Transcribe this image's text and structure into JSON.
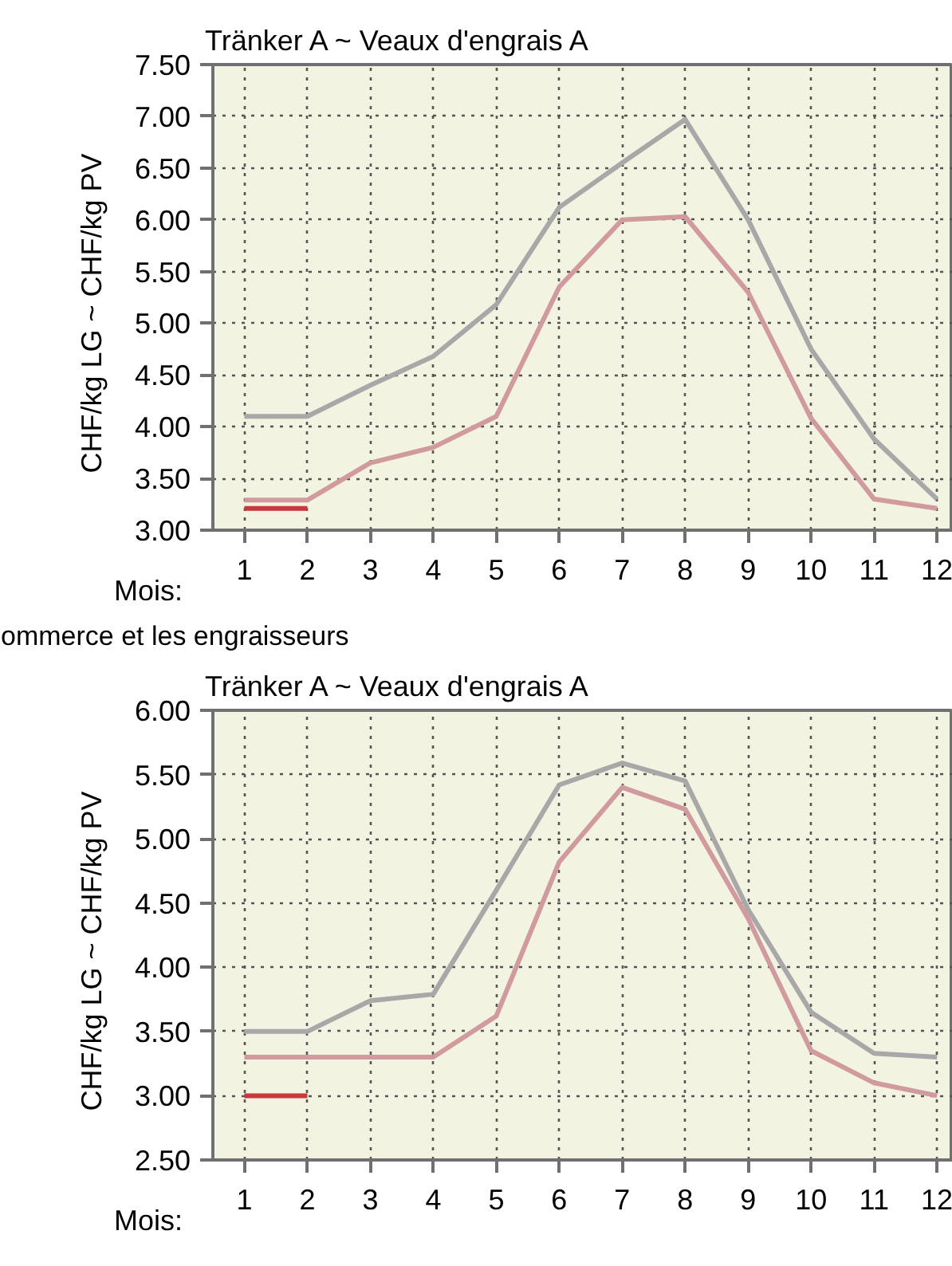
{
  "chart_data": [
    {
      "type": "line",
      "title": "Tränker A   ~   Veaux d'engrais A",
      "xlabel": "Mois:",
      "ylabel": "CHF/kg LG   ~   CHF/kg PV",
      "x": [
        1,
        2,
        3,
        4,
        5,
        6,
        7,
        8,
        9,
        10,
        11,
        12
      ],
      "xlim": [
        0.5,
        12.25
      ],
      "xticks": [
        1,
        2,
        3,
        4,
        5,
        6,
        7,
        8,
        9,
        10,
        11,
        12
      ],
      "ylim": [
        3.0,
        7.5
      ],
      "yticks": [
        {
          "value": 3.0,
          "label": "3.00"
        },
        {
          "value": 3.5,
          "label": "3.50"
        },
        {
          "value": 4.0,
          "label": "4.00"
        },
        {
          "value": 4.5,
          "label": "4.50"
        },
        {
          "value": 5.0,
          "label": "5.00"
        },
        {
          "value": 5.5,
          "label": "5.50"
        },
        {
          "value": 6.0,
          "label": "6.00"
        },
        {
          "value": 6.5,
          "label": "6.50"
        },
        {
          "value": 7.0,
          "label": "7.00"
        },
        {
          "value": 7.5,
          "label": "7.50"
        }
      ],
      "grid": true,
      "series": [
        {
          "color": "#a8a8a8",
          "values": [
            4.1,
            4.1,
            4.4,
            4.68,
            5.18,
            6.12,
            6.55,
            6.97,
            6.0,
            4.75,
            3.88,
            3.3
          ]
        },
        {
          "color": "#d09a9e",
          "values": [
            3.29,
            3.29,
            3.65,
            3.8,
            4.1,
            5.35,
            6.0,
            6.03,
            5.3,
            4.08,
            3.3,
            3.21
          ]
        },
        {
          "color": "#c8383d",
          "values": [
            3.21,
            3.21,
            null,
            null,
            null,
            null,
            null,
            null,
            null,
            null,
            null,
            null
          ]
        }
      ]
    },
    {
      "type": "line",
      "title": "Tränker A   ~   Veaux d'engrais A",
      "annotations": [
        "ommerce et les engraisseurs"
      ],
      "xlabel": "Mois:",
      "ylabel": "CHF/kg LG   ~   CHF/kg PV",
      "x": [
        1,
        2,
        3,
        4,
        5,
        6,
        7,
        8,
        9,
        10,
        11,
        12
      ],
      "xlim": [
        0.5,
        12.25
      ],
      "xticks": [
        1,
        2,
        3,
        4,
        5,
        6,
        7,
        8,
        9,
        10,
        11,
        12
      ],
      "ylim": [
        2.5,
        6.0
      ],
      "yticks": [
        {
          "value": 2.5,
          "label": "2.50"
        },
        {
          "value": 3.0,
          "label": "3.00"
        },
        {
          "value": 3.5,
          "label": "3.50"
        },
        {
          "value": 4.0,
          "label": "4.00"
        },
        {
          "value": 4.5,
          "label": "4.50"
        },
        {
          "value": 5.0,
          "label": "5.00"
        },
        {
          "value": 5.5,
          "label": "5.50"
        },
        {
          "value": 6.0,
          "label": "6.00"
        }
      ],
      "grid": true,
      "series": [
        {
          "color": "#a8a8a8",
          "values": [
            3.5,
            3.5,
            3.74,
            3.79,
            4.6,
            5.42,
            5.59,
            5.45,
            4.45,
            3.65,
            3.33,
            3.3
          ]
        },
        {
          "color": "#d09a9e",
          "values": [
            3.3,
            3.3,
            3.3,
            3.3,
            3.62,
            4.82,
            5.4,
            5.23,
            4.38,
            3.35,
            3.1,
            3.0
          ]
        },
        {
          "color": "#c8383d",
          "values": [
            3.0,
            3.0,
            null,
            null,
            null,
            null,
            null,
            null,
            null,
            null,
            null,
            null
          ]
        }
      ]
    }
  ]
}
